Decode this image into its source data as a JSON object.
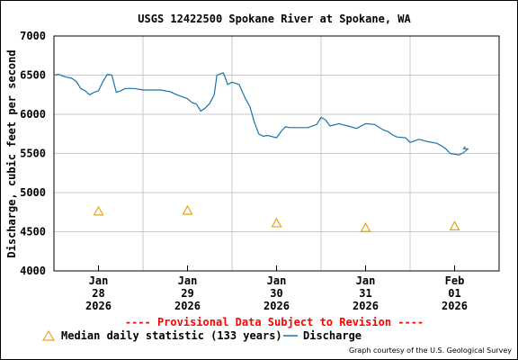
{
  "chart_data": {
    "type": "line",
    "title": "USGS 12422500 Spokane River at Spokane, WA",
    "ylabel": "Discharge, cubic feet per second",
    "xlabel": "",
    "ylim": [
      4000,
      7000
    ],
    "yticks": [
      "7000",
      "6500",
      "6000",
      "5500",
      "5000",
      "4500",
      "4000"
    ],
    "ytick_values": [
      7000,
      6500,
      6000,
      5500,
      5000,
      4500,
      4000
    ],
    "xlim": [
      -0.5,
      4.5
    ],
    "xticks": [
      {
        "x": 0,
        "month": "Jan",
        "day": "28",
        "year": "2026"
      },
      {
        "x": 1,
        "month": "Jan",
        "day": "29",
        "year": "2026"
      },
      {
        "x": 2,
        "month": "Jan",
        "day": "30",
        "year": "2026"
      },
      {
        "x": 3,
        "month": "Jan",
        "day": "31",
        "year": "2026"
      },
      {
        "x": 4,
        "month": "Feb",
        "day": "01",
        "year": "2026"
      }
    ],
    "grid": true,
    "annotation": "---- Provisional Data Subject to Revision ----",
    "credit": "Graph courtesy of the U.S. Geological Survey",
    "colors": {
      "discharge": "#1a73a8",
      "median": "#e8a317",
      "provisional": "#ff0000",
      "grid": "#c8c8c8"
    },
    "series": [
      {
        "name": "Median daily statistic (133 years)",
        "marker": "triangle",
        "points": [
          [
            0,
            4760
          ],
          [
            1,
            4770
          ],
          [
            2,
            4610
          ],
          [
            3,
            4550
          ],
          [
            4,
            4570
          ]
        ]
      },
      {
        "name": "Discharge",
        "line": true,
        "points": [
          [
            -0.5,
            6500
          ],
          [
            -0.45,
            6510
          ],
          [
            -0.38,
            6480
          ],
          [
            -0.3,
            6460
          ],
          [
            -0.25,
            6420
          ],
          [
            -0.2,
            6330
          ],
          [
            -0.15,
            6300
          ],
          [
            -0.1,
            6250
          ],
          [
            -0.05,
            6280
          ],
          [
            0.0,
            6300
          ],
          [
            0.05,
            6420
          ],
          [
            0.1,
            6510
          ],
          [
            0.15,
            6500
          ],
          [
            0.2,
            6280
          ],
          [
            0.25,
            6300
          ],
          [
            0.3,
            6330
          ],
          [
            0.4,
            6330
          ],
          [
            0.5,
            6310
          ],
          [
            0.6,
            6310
          ],
          [
            0.7,
            6310
          ],
          [
            0.8,
            6290
          ],
          [
            0.9,
            6240
          ],
          [
            1.0,
            6200
          ],
          [
            1.05,
            6150
          ],
          [
            1.1,
            6130
          ],
          [
            1.15,
            6040
          ],
          [
            1.2,
            6080
          ],
          [
            1.25,
            6140
          ],
          [
            1.3,
            6250
          ],
          [
            1.33,
            6500
          ],
          [
            1.4,
            6530
          ],
          [
            1.42,
            6480
          ],
          [
            1.45,
            6380
          ],
          [
            1.5,
            6410
          ],
          [
            1.58,
            6380
          ],
          [
            1.65,
            6200
          ],
          [
            1.7,
            6100
          ],
          [
            1.75,
            5900
          ],
          [
            1.8,
            5750
          ],
          [
            1.85,
            5720
          ],
          [
            1.9,
            5730
          ],
          [
            2.0,
            5700
          ],
          [
            2.05,
            5780
          ],
          [
            2.1,
            5840
          ],
          [
            2.15,
            5830
          ],
          [
            2.25,
            5830
          ],
          [
            2.35,
            5830
          ],
          [
            2.45,
            5870
          ],
          [
            2.5,
            5960
          ],
          [
            2.55,
            5930
          ],
          [
            2.6,
            5850
          ],
          [
            2.7,
            5880
          ],
          [
            2.8,
            5850
          ],
          [
            2.9,
            5820
          ],
          [
            3.0,
            5880
          ],
          [
            3.1,
            5870
          ],
          [
            3.2,
            5800
          ],
          [
            3.25,
            5780
          ],
          [
            3.3,
            5740
          ],
          [
            3.35,
            5710
          ],
          [
            3.45,
            5700
          ],
          [
            3.5,
            5640
          ],
          [
            3.6,
            5680
          ],
          [
            3.7,
            5650
          ],
          [
            3.8,
            5630
          ],
          [
            3.85,
            5600
          ],
          [
            3.9,
            5560
          ],
          [
            3.95,
            5500
          ],
          [
            4.05,
            5480
          ],
          [
            4.1,
            5510
          ],
          [
            4.15,
            5560
          ],
          [
            4.1,
            5560
          ],
          [
            4.12,
            5590
          ]
        ]
      }
    ]
  }
}
